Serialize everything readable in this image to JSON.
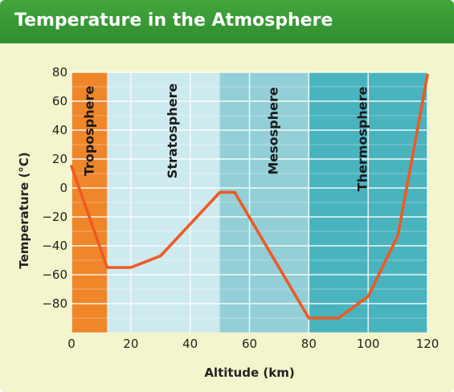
{
  "header": {
    "title": "Temperature in the Atmosphere"
  },
  "chart_data": {
    "type": "line",
    "title": "Temperature in the Atmosphere",
    "xlabel": "Altitude (km)",
    "ylabel": "Temperature (°C)",
    "xlim": [
      0,
      120
    ],
    "ylim": [
      -100,
      80
    ],
    "x_ticks": [
      0,
      20,
      40,
      60,
      80,
      100,
      120
    ],
    "y_ticks": [
      80,
      60,
      40,
      20,
      0,
      -20,
      -40,
      -60,
      -80
    ],
    "grid": true,
    "regions": [
      {
        "name": "Troposphere",
        "x_from": 0,
        "x_to": 12,
        "color": "#f0862a",
        "label_color": "#1a1a1a"
      },
      {
        "name": "Stratosphere",
        "x_from": 12,
        "x_to": 50,
        "color": "#cdeaef",
        "label_color": "#1a1a1a"
      },
      {
        "name": "Mesosphere",
        "x_from": 50,
        "x_to": 80,
        "color": "#93cfd7",
        "label_color": "#1a1a1a"
      },
      {
        "name": "Thermosphere",
        "x_from": 80,
        "x_to": 120,
        "color": "#4ab4be",
        "label_color": "#1a1a1a"
      }
    ],
    "series": [
      {
        "color": "#ee5a24",
        "x": [
          0,
          12,
          20,
          30,
          50,
          55,
          80,
          90,
          100,
          110,
          120
        ],
        "y": [
          15,
          -55,
          -55,
          -47,
          -3,
          -3,
          -90,
          -90,
          -75,
          -33,
          78
        ]
      }
    ]
  }
}
